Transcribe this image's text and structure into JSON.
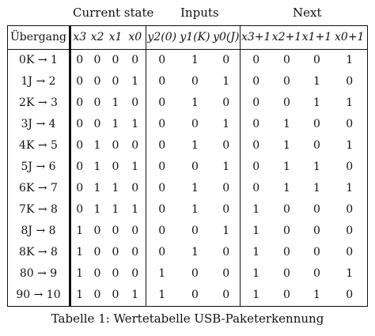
{
  "group_headers": {
    "current_state": "Current state",
    "inputs": "Inputs",
    "next": "Next"
  },
  "columns": [
    "Übergang",
    "x3",
    "x2",
    "x1",
    "x0",
    "y2(0)",
    "y1(K)",
    "y0(J)",
    "x3+1",
    "x2+1",
    "x1+1",
    "x0+1"
  ],
  "rows": [
    [
      "0K → 1",
      "0",
      "0",
      "0",
      "0",
      "0",
      "1",
      "0",
      "0",
      "0",
      "0",
      "1"
    ],
    [
      "1J → 2",
      "0",
      "0",
      "0",
      "1",
      "0",
      "0",
      "1",
      "0",
      "0",
      "1",
      "0"
    ],
    [
      "2K → 3",
      "0",
      "0",
      "1",
      "0",
      "0",
      "1",
      "0",
      "0",
      "0",
      "1",
      "1"
    ],
    [
      "3J → 4",
      "0",
      "0",
      "1",
      "1",
      "0",
      "0",
      "1",
      "0",
      "1",
      "0",
      "0"
    ],
    [
      "4K → 5",
      "0",
      "1",
      "0",
      "0",
      "0",
      "1",
      "0",
      "0",
      "1",
      "0",
      "1"
    ],
    [
      "5J → 6",
      "0",
      "1",
      "0",
      "1",
      "0",
      "0",
      "1",
      "0",
      "1",
      "1",
      "0"
    ],
    [
      "6K → 7",
      "0",
      "1",
      "1",
      "0",
      "0",
      "1",
      "0",
      "0",
      "1",
      "1",
      "1"
    ],
    [
      "7K → 8",
      "0",
      "1",
      "1",
      "1",
      "0",
      "1",
      "0",
      "1",
      "0",
      "0",
      "0"
    ],
    [
      "8J → 8",
      "1",
      "0",
      "0",
      "0",
      "0",
      "0",
      "1",
      "1",
      "0",
      "0",
      "0"
    ],
    [
      "8K → 8",
      "1",
      "0",
      "0",
      "0",
      "0",
      "1",
      "0",
      "1",
      "0",
      "0",
      "0"
    ],
    [
      "80 → 9",
      "1",
      "0",
      "0",
      "0",
      "1",
      "0",
      "0",
      "1",
      "0",
      "0",
      "1"
    ],
    [
      "90 → 10",
      "1",
      "0",
      "0",
      "1",
      "1",
      "0",
      "0",
      "1",
      "0",
      "1",
      "0"
    ]
  ],
  "caption": "Tabelle 1: Wertetabelle USB-Paketerkennung"
}
